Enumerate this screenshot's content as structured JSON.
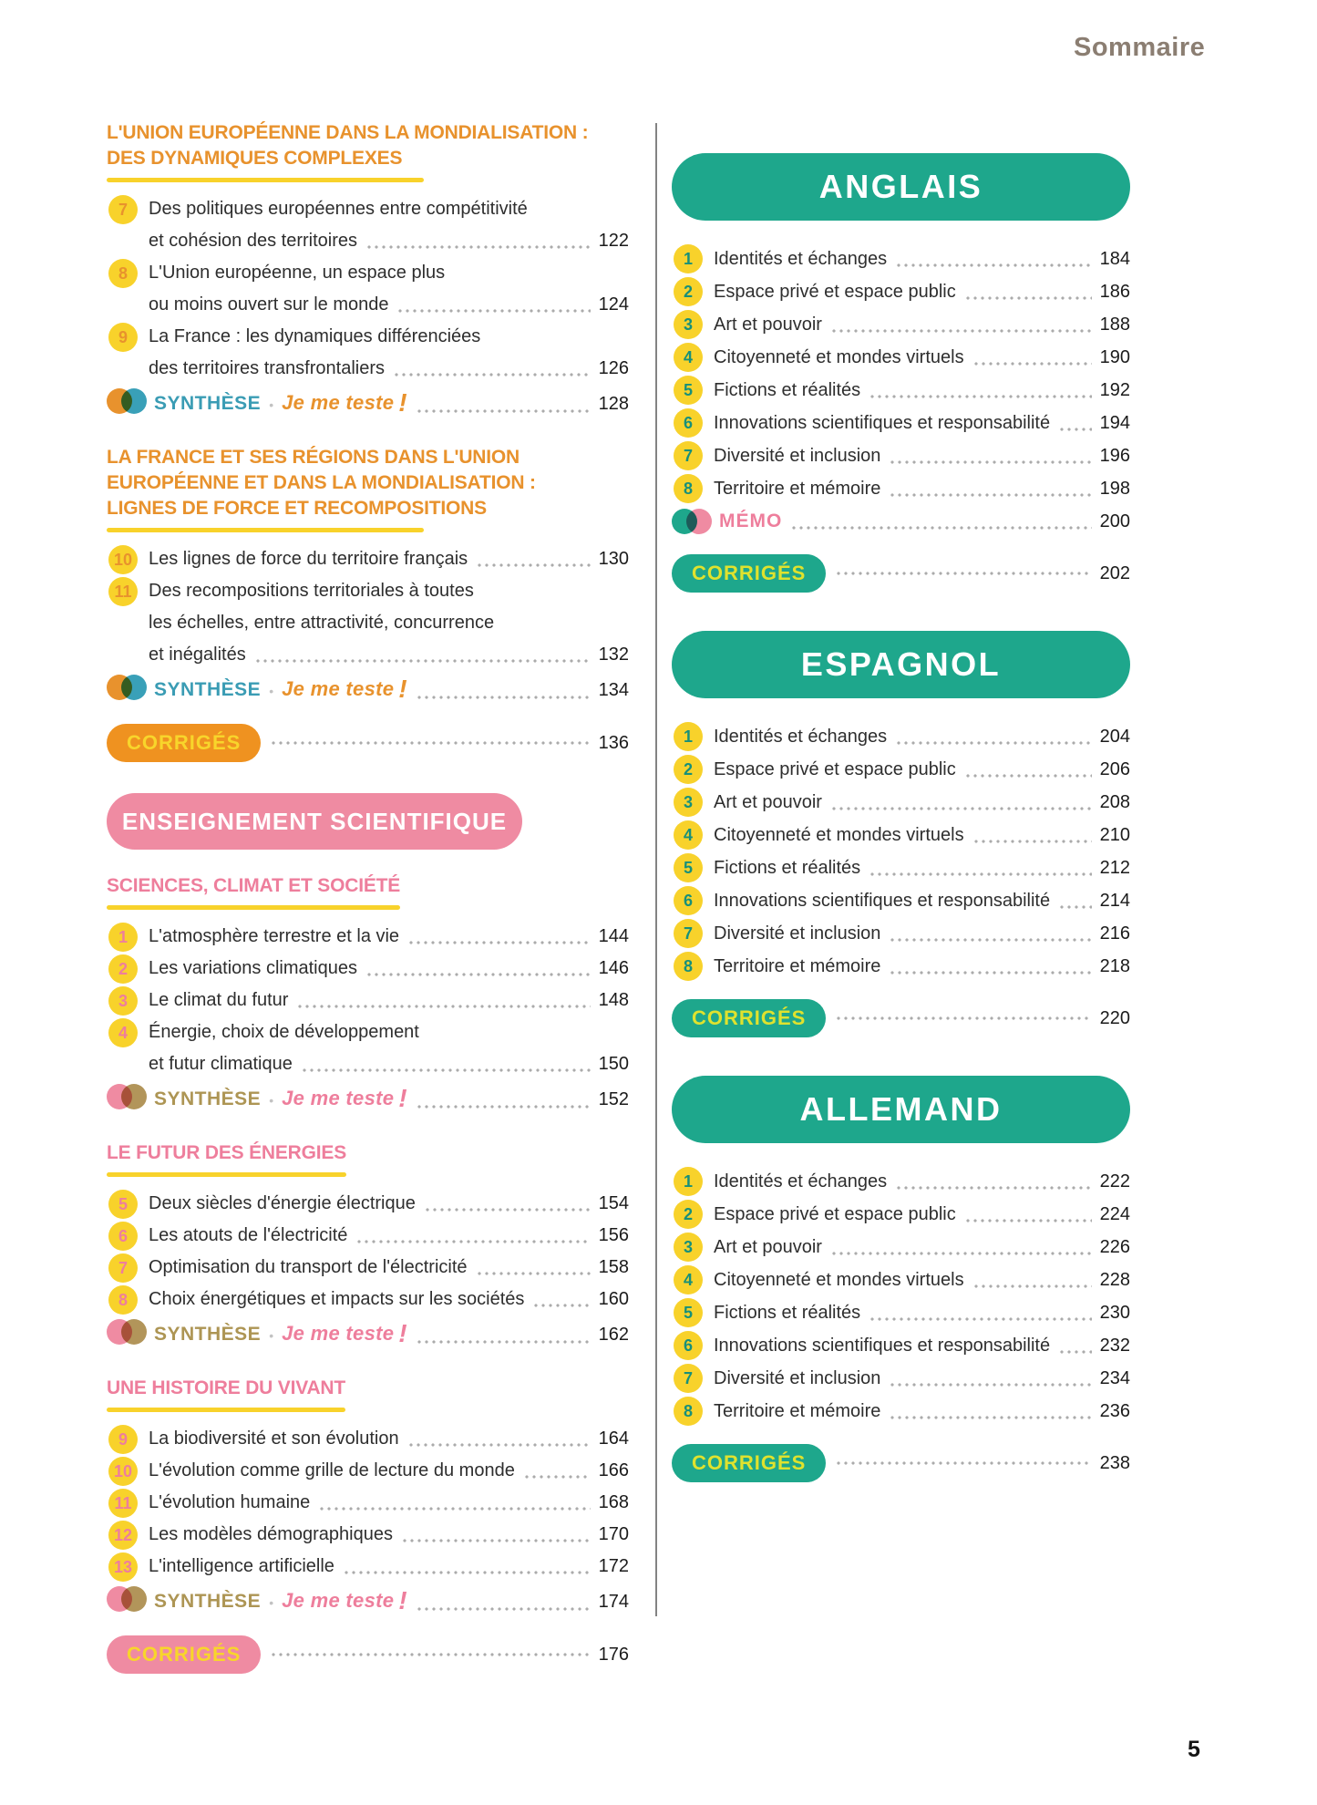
{
  "header": {
    "title": "Sommaire"
  },
  "footer": {
    "page_number": "5"
  },
  "labels": {
    "synthese": "SYNTHÈSE",
    "je_me_teste": "Je me teste",
    "bang": "!",
    "separator": "•",
    "corriges": "CORRIGÉS",
    "memo": "MÉMO"
  },
  "colors": {
    "orange": "#e8922d",
    "yellow": "#f8d22b",
    "pink_banner": "#ef8ba2",
    "pink_text": "#ee7e9c",
    "teal_banner": "#1ea78c",
    "teal_number": "#17907a",
    "synthese_blue": "#3a9cb4",
    "synthese_tan": "#ad9554",
    "corriges_pill_orange": "#ef9220",
    "corriges_text_yellow": "#f8d52b",
    "corriges_text_lime": "#dfe22e",
    "header_brown": "#8b7e72"
  },
  "left_column": {
    "groups": [
      {
        "theme": "geo",
        "banner": null,
        "sections": [
          {
            "heading": [
              "L'UNION EUROPÉENNE DANS LA MONDIALISATION :",
              "DES DYNAMIQUES COMPLEXES"
            ],
            "items": [
              {
                "num": "7",
                "lines": [
                  "Des politiques européennes entre compétitivité",
                  "et cohésion des territoires"
                ],
                "page": "122"
              },
              {
                "num": "8",
                "lines": [
                  "L'Union européenne, un espace plus",
                  "ou moins ouvert sur le monde"
                ],
                "page": "124"
              },
              {
                "num": "9",
                "lines": [
                  "La France : les dynamiques différenciées",
                  "des territoires transfrontaliers"
                ],
                "page": "126"
              }
            ],
            "synthese_page": "128"
          },
          {
            "heading": [
              "LA FRANCE ET SES RÉGIONS DANS L'UNION",
              "EUROPÉENNE ET DANS LA MONDIALISATION :",
              "LIGNES DE FORCE ET RECOMPOSITIONS"
            ],
            "items": [
              {
                "num": "10",
                "lines": [
                  "Les lignes de force du territoire français"
                ],
                "page": "130"
              },
              {
                "num": "11",
                "lines": [
                  "Des recompositions territoriales à toutes",
                  "les échelles, entre attractivité, concurrence",
                  "et inégalités"
                ],
                "page": "132"
              }
            ],
            "synthese_page": "134"
          }
        ],
        "corriges_page": "136"
      },
      {
        "theme": "sci",
        "banner": "ENSEIGNEMENT SCIENTIFIQUE",
        "sections": [
          {
            "heading": [
              "SCIENCES, CLIMAT ET SOCIÉTÉ"
            ],
            "items": [
              {
                "num": "1",
                "lines": [
                  "L'atmosphère terrestre et la vie"
                ],
                "page": "144"
              },
              {
                "num": "2",
                "lines": [
                  "Les variations climatiques"
                ],
                "page": "146"
              },
              {
                "num": "3",
                "lines": [
                  "Le climat du futur"
                ],
                "page": "148"
              },
              {
                "num": "4",
                "lines": [
                  "Énergie, choix de développement",
                  "et futur climatique"
                ],
                "page": "150"
              }
            ],
            "synthese_page": "152"
          },
          {
            "heading": [
              "LE FUTUR DES ÉNERGIES"
            ],
            "items": [
              {
                "num": "5",
                "lines": [
                  "Deux siècles d'énergie électrique"
                ],
                "page": "154"
              },
              {
                "num": "6",
                "lines": [
                  "Les atouts de l'électricité"
                ],
                "page": "156"
              },
              {
                "num": "7",
                "lines": [
                  "Optimisation du transport de l'électricité"
                ],
                "page": "158"
              },
              {
                "num": "8",
                "lines": [
                  "Choix énergétiques et impacts sur les sociétés"
                ],
                "page": "160"
              }
            ],
            "synthese_page": "162"
          },
          {
            "heading": [
              "UNE HISTOIRE DU VIVANT"
            ],
            "items": [
              {
                "num": "9",
                "lines": [
                  "La biodiversité et son évolution"
                ],
                "page": "164"
              },
              {
                "num": "10",
                "lines": [
                  "L'évolution comme grille de lecture du monde"
                ],
                "page": "166"
              },
              {
                "num": "11",
                "lines": [
                  "L'évolution humaine"
                ],
                "page": "168"
              },
              {
                "num": "12",
                "lines": [
                  "Les modèles démographiques"
                ],
                "page": "170"
              },
              {
                "num": "13",
                "lines": [
                  "L'intelligence artificielle"
                ],
                "page": "172"
              }
            ],
            "synthese_page": "174"
          }
        ],
        "corriges_page": "176"
      }
    ]
  },
  "right_column": {
    "groups": [
      {
        "theme": "lang",
        "banner": "ANGLAIS",
        "items": [
          {
            "num": "1",
            "lines": [
              "Identités et échanges"
            ],
            "page": "184"
          },
          {
            "num": "2",
            "lines": [
              "Espace privé et espace public"
            ],
            "page": "186"
          },
          {
            "num": "3",
            "lines": [
              "Art et pouvoir"
            ],
            "page": "188"
          },
          {
            "num": "4",
            "lines": [
              "Citoyenneté et mondes virtuels"
            ],
            "page": "190"
          },
          {
            "num": "5",
            "lines": [
              "Fictions et réalités"
            ],
            "page": "192"
          },
          {
            "num": "6",
            "lines": [
              "Innovations scientifiques et responsabilité"
            ],
            "page": "194"
          },
          {
            "num": "7",
            "lines": [
              "Diversité et inclusion"
            ],
            "page": "196"
          },
          {
            "num": "8",
            "lines": [
              "Territoire et mémoire"
            ],
            "page": "198"
          }
        ],
        "memo_page": "200",
        "corriges_page": "202"
      },
      {
        "theme": "lang",
        "banner": "ESPAGNOL",
        "items": [
          {
            "num": "1",
            "lines": [
              "Identités et échanges"
            ],
            "page": "204"
          },
          {
            "num": "2",
            "lines": [
              "Espace privé et espace public"
            ],
            "page": "206"
          },
          {
            "num": "3",
            "lines": [
              "Art et pouvoir"
            ],
            "page": "208"
          },
          {
            "num": "4",
            "lines": [
              "Citoyenneté et mondes virtuels"
            ],
            "page": "210"
          },
          {
            "num": "5",
            "lines": [
              "Fictions et réalités"
            ],
            "page": "212"
          },
          {
            "num": "6",
            "lines": [
              "Innovations scientifiques et responsabilité"
            ],
            "page": "214"
          },
          {
            "num": "7",
            "lines": [
              "Diversité et inclusion"
            ],
            "page": "216"
          },
          {
            "num": "8",
            "lines": [
              "Territoire et mémoire"
            ],
            "page": "218"
          }
        ],
        "memo_page": null,
        "corriges_page": "220"
      },
      {
        "theme": "lang",
        "banner": "ALLEMAND",
        "items": [
          {
            "num": "1",
            "lines": [
              "Identités et échanges"
            ],
            "page": "222"
          },
          {
            "num": "2",
            "lines": [
              "Espace privé et espace public"
            ],
            "page": "224"
          },
          {
            "num": "3",
            "lines": [
              "Art et pouvoir"
            ],
            "page": "226"
          },
          {
            "num": "4",
            "lines": [
              "Citoyenneté et mondes virtuels"
            ],
            "page": "228"
          },
          {
            "num": "5",
            "lines": [
              "Fictions et réalités"
            ],
            "page": "230"
          },
          {
            "num": "6",
            "lines": [
              "Innovations scientifiques et responsabilité"
            ],
            "page": "232"
          },
          {
            "num": "7",
            "lines": [
              "Diversité et inclusion"
            ],
            "page": "234"
          },
          {
            "num": "8",
            "lines": [
              "Territoire et mémoire"
            ],
            "page": "236"
          }
        ],
        "memo_page": null,
        "corriges_page": "238"
      }
    ]
  }
}
